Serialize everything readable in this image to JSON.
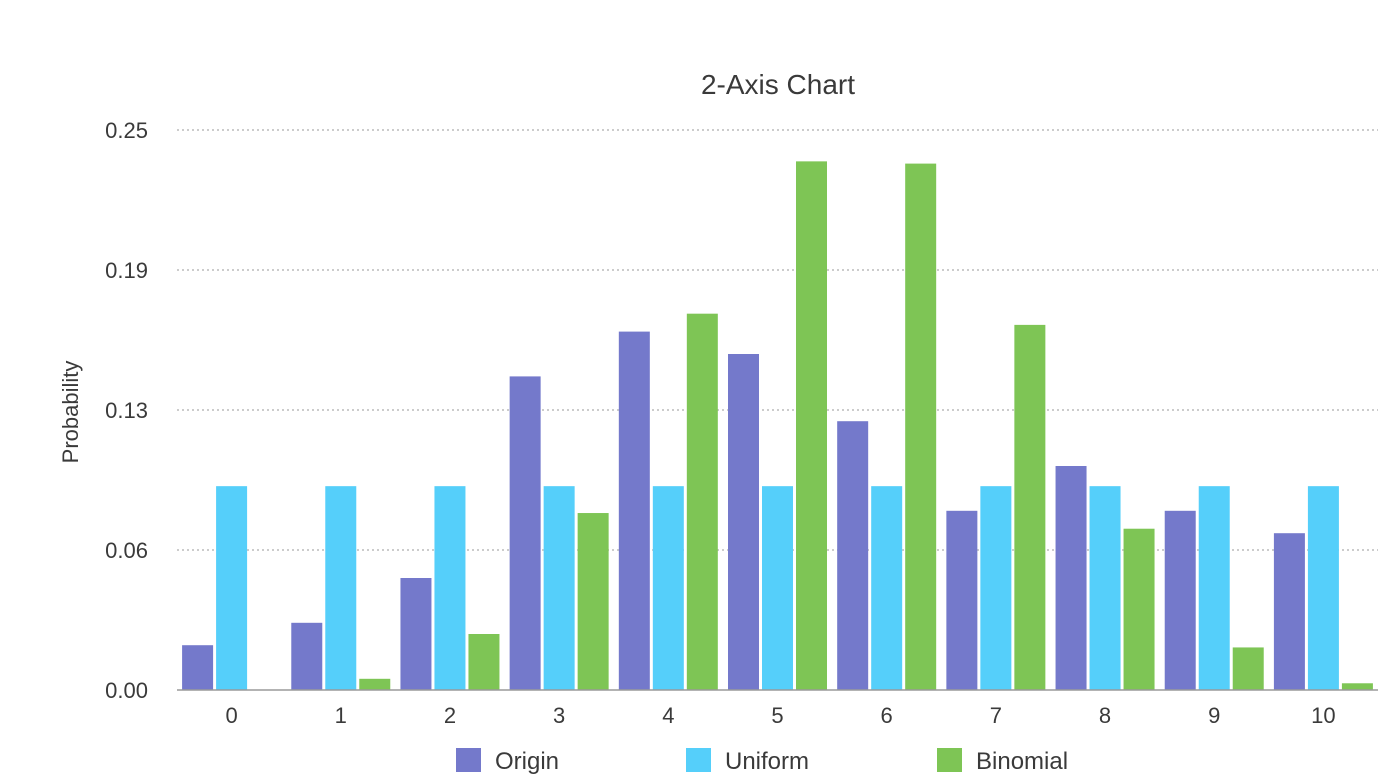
{
  "chart_data": {
    "type": "bar",
    "title": "2-Axis Chart",
    "xlabel": "",
    "ylabel": "Probability",
    "ylim": [
      0,
      0.25
    ],
    "yticks": [
      "0.00",
      "0.06",
      "0.13",
      "0.19",
      "0.25"
    ],
    "categories": [
      "0",
      "1",
      "2",
      "3",
      "4",
      "5",
      "6",
      "7",
      "8",
      "9",
      "10"
    ],
    "series": [
      {
        "name": "Origin",
        "color": "#7479cb",
        "values": [
          0.02,
          0.03,
          0.05,
          0.14,
          0.16,
          0.15,
          0.12,
          0.08,
          0.1,
          0.08,
          0.07
        ]
      },
      {
        "name": "Uniform",
        "color": "#55cffa",
        "values": [
          0.091,
          0.091,
          0.091,
          0.091,
          0.091,
          0.091,
          0.091,
          0.091,
          0.091,
          0.091,
          0.091
        ]
      },
      {
        "name": "Binomial",
        "color": "#7ec555",
        "values": [
          0.0,
          0.005,
          0.025,
          0.079,
          0.168,
          0.236,
          0.235,
          0.163,
          0.072,
          0.019,
          0.003
        ]
      }
    ],
    "grid": true,
    "legend": "bottom"
  }
}
